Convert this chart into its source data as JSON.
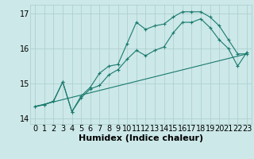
{
  "xlabel": "Humidex (Indice chaleur)",
  "background_color": "#cce8e8",
  "grid_color": "#aacccc",
  "line_color": "#1a7a6e",
  "xlim": [
    -0.5,
    23.5
  ],
  "ylim": [
    13.85,
    17.25
  ],
  "yticks": [
    14,
    15,
    16,
    17
  ],
  "xticks": [
    0,
    1,
    2,
    3,
    4,
    5,
    6,
    7,
    8,
    9,
    10,
    11,
    12,
    13,
    14,
    15,
    16,
    17,
    18,
    19,
    20,
    21,
    22,
    23
  ],
  "line1_x": [
    0,
    1,
    2,
    3,
    4,
    5,
    6,
    7,
    8,
    9,
    10,
    11,
    12,
    13,
    14,
    15,
    16,
    17,
    18,
    19,
    20,
    21,
    22,
    23
  ],
  "line1_y": [
    14.35,
    14.4,
    14.5,
    15.05,
    14.2,
    14.65,
    14.9,
    15.3,
    15.5,
    15.55,
    16.15,
    16.75,
    16.55,
    16.65,
    16.7,
    16.9,
    17.05,
    17.05,
    17.05,
    16.9,
    16.65,
    16.25,
    15.85,
    15.85
  ],
  "line2_x": [
    0,
    1,
    2,
    3,
    4,
    5,
    6,
    7,
    8,
    9,
    10,
    11,
    12,
    13,
    14,
    15,
    16,
    17,
    18,
    19,
    20,
    21,
    22,
    23
  ],
  "line2_y": [
    14.35,
    14.4,
    14.5,
    15.05,
    14.2,
    14.6,
    14.85,
    14.95,
    15.25,
    15.4,
    15.7,
    15.95,
    15.8,
    15.95,
    16.05,
    16.45,
    16.75,
    16.75,
    16.85,
    16.6,
    16.25,
    16.0,
    15.5,
    15.9
  ],
  "line3_x": [
    0,
    23
  ],
  "line3_y": [
    14.35,
    15.85
  ],
  "font_size": 8,
  "tick_fontsize": 7
}
